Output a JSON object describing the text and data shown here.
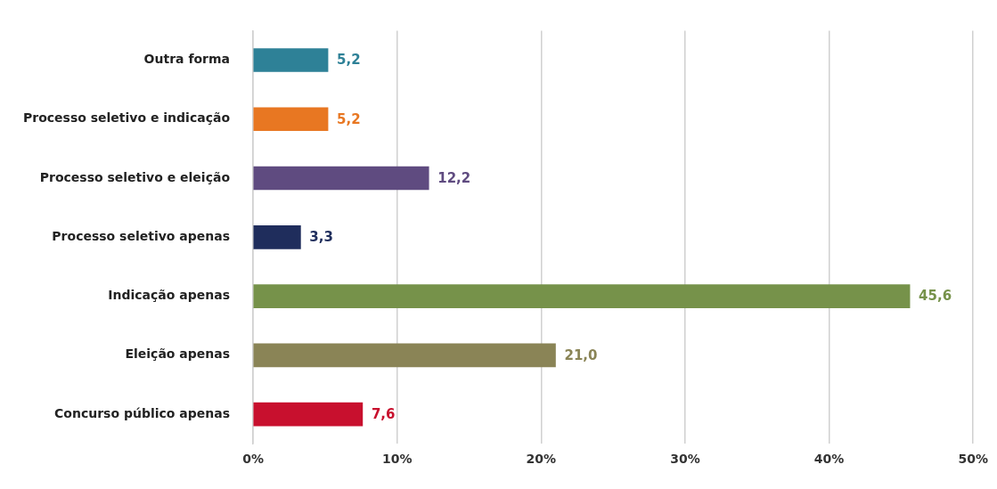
{
  "chart_data": {
    "type": "bar",
    "orientation": "horizontal",
    "categories": [
      "Outra forma",
      "Processo seletivo e indicação",
      "Processo seletivo e eleição",
      "Processo seletivo apenas",
      "Indicação apenas",
      "Eleição apenas",
      "Concurso público apenas"
    ],
    "values": [
      5.2,
      5.2,
      12.2,
      3.3,
      45.6,
      21.0,
      7.6
    ],
    "colors": [
      "#2e8197",
      "#e87722",
      "#5f4b80",
      "#1f2d5c",
      "#76924a",
      "#8a8456",
      "#c8102e"
    ],
    "value_labels": [
      "5,2",
      "5,2",
      "12,2",
      "3,3",
      "45,6",
      "21,0",
      "7,6"
    ],
    "xlim": [
      0,
      50
    ],
    "xticks": [
      {
        "value": 0,
        "label": "0%"
      },
      {
        "value": 10,
        "label": "10%"
      },
      {
        "value": 20,
        "label": "20%"
      },
      {
        "value": 30,
        "label": "30%"
      },
      {
        "value": 40,
        "label": "40%"
      },
      {
        "value": 50,
        "label": "50%"
      }
    ],
    "grid": "x",
    "legend": false
  }
}
